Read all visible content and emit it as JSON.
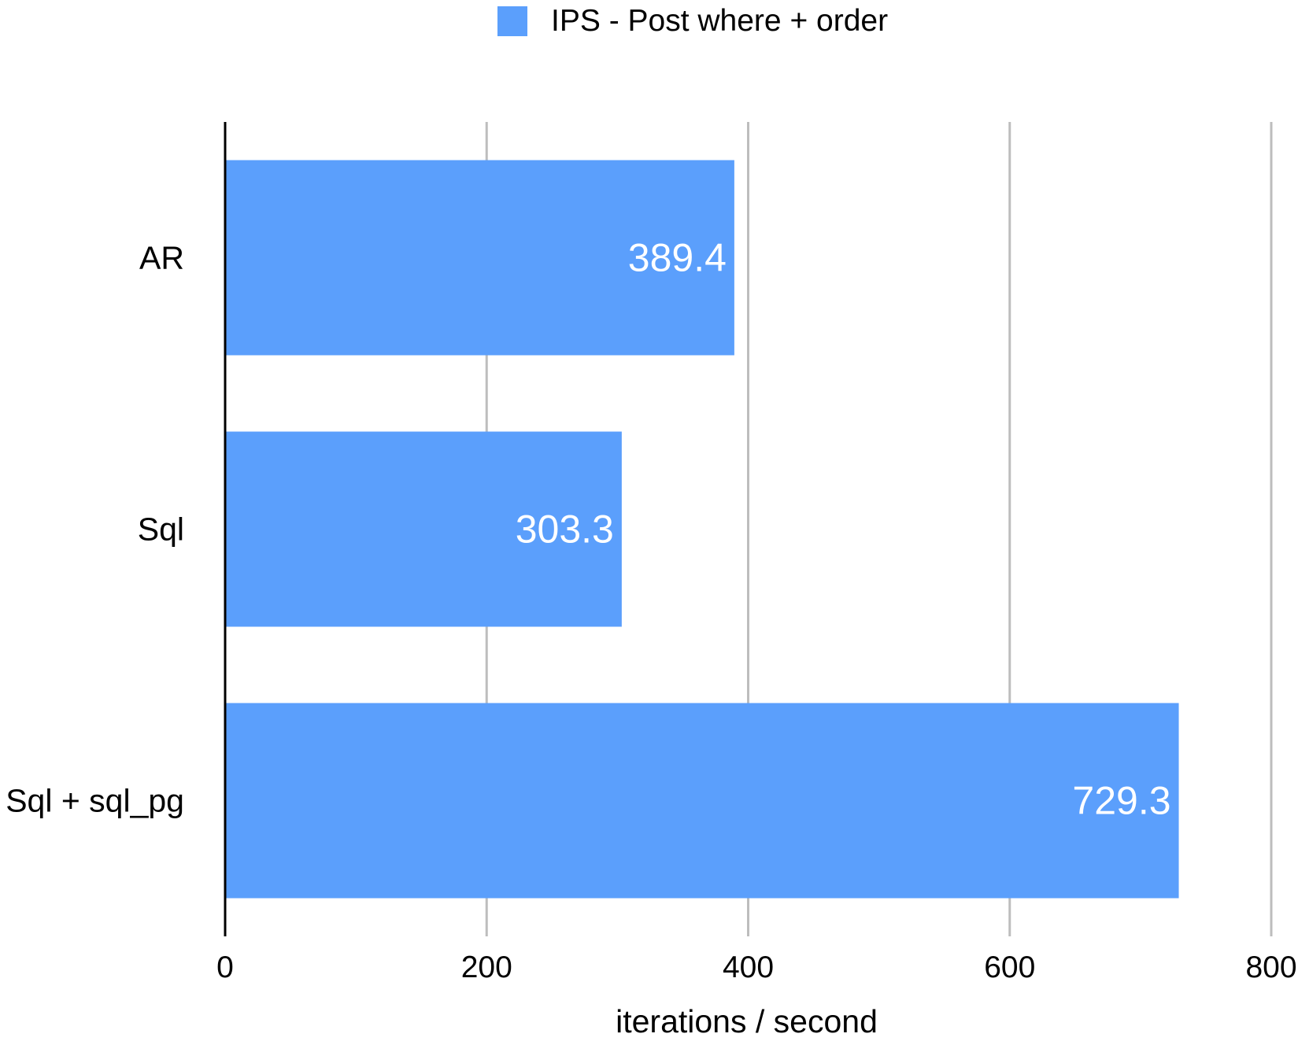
{
  "chart_data": {
    "type": "bar",
    "orientation": "horizontal",
    "categories": [
      "AR",
      "Sql",
      "Sql + sql_pg"
    ],
    "series": [
      {
        "name": "IPS - Post where + order",
        "values": [
          389.4,
          303.3,
          729.3
        ],
        "data_labels": [
          "389.4",
          "303.3",
          "729.3"
        ],
        "color": "#5b9ffc"
      }
    ],
    "xlabel": "iterations / second",
    "ylabel": "",
    "xlim": [
      0,
      800
    ],
    "xticks": [
      0,
      200,
      400,
      600,
      800
    ],
    "xtick_labels": [
      "0",
      "200",
      "400",
      "600",
      "800"
    ],
    "grid": true,
    "legend": "top-center",
    "colors": {
      "bar": "#5b9ffc",
      "grid": "#bdbdbd",
      "axis": "#000000",
      "data_label": "#ffffff",
      "text": "#000000"
    }
  }
}
